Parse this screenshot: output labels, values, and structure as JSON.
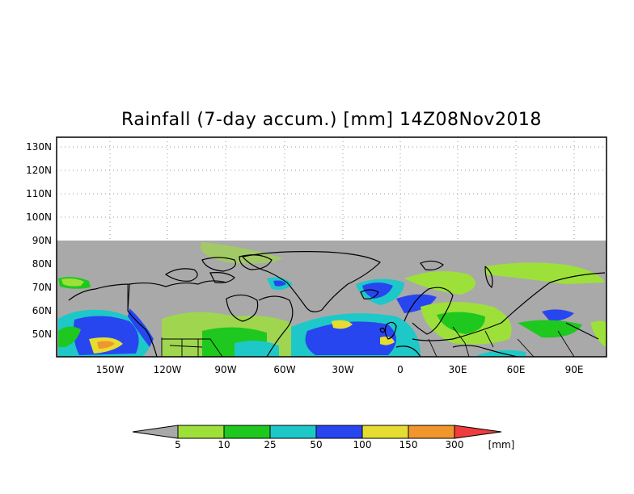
{
  "title": "Rainfall (7-day accum.) [mm] 14Z08Nov2018",
  "map": {
    "lon_labels": [
      "150W",
      "120W",
      "90W",
      "60W",
      "30W",
      "0",
      "30E",
      "60E",
      "90E"
    ],
    "lat_labels": [
      "130N",
      "120N",
      "110N",
      "100N",
      "90N",
      "80N",
      "70N",
      "60N",
      "50N"
    ],
    "no_data_color": "#a9a9a9",
    "land_outline_color": "#000000",
    "grid": "dotted"
  },
  "colorbar": {
    "unit": "[mm]",
    "thresholds": [
      "5",
      "10",
      "25",
      "50",
      "100",
      "150",
      "300"
    ],
    "colors": [
      "#a9a9a9",
      "#9ee03a",
      "#1ec81e",
      "#1ec8c8",
      "#2846f0",
      "#e6dc32",
      "#f0962d",
      "#f03c3c"
    ]
  }
}
